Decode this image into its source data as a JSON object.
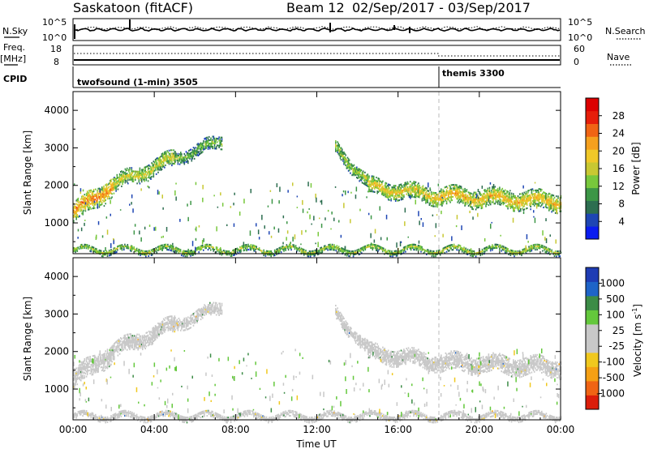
{
  "header": {
    "radar": "Saskatoon (fitACF)",
    "beam": "Beam 12",
    "dates": "02/Sep/2017 - 03/Sep/2017"
  },
  "strips": {
    "nsky_label": "N.Sky",
    "nsearch_label": "N.Search",
    "sky_ticks": [
      "10^5",
      "10^0"
    ],
    "search_ticks": [
      "10^5",
      "10^0"
    ],
    "freq_label": "Freq.",
    "freq_unit": "[MHz]",
    "freq_ticks": [
      "18",
      "8"
    ],
    "nave_label": "Nave",
    "nave_ticks": [
      "60",
      "0"
    ],
    "cpid_label": "CPID",
    "cpid_segments": [
      {
        "name": "twofsound (1-min) 3505",
        "start_hour": 0
      },
      {
        "name": "themis 3300",
        "start_hour": 18
      }
    ]
  },
  "axes": {
    "ylabel": "Slant Range [km]",
    "xlabel": "Time UT",
    "y_ticks": [
      1000,
      2000,
      3000,
      4000
    ],
    "x_ticks": [
      "00:00",
      "04:00",
      "08:00",
      "12:00",
      "16:00",
      "20:00",
      "00:00"
    ]
  },
  "colorbars": {
    "power": {
      "label": "Power [dB]",
      "ticks": [
        "4",
        "8",
        "12",
        "16",
        "20",
        "24",
        "28"
      ],
      "colors": [
        "#0a1cf0",
        "#1e46b4",
        "#2d6e50",
        "#3c9646",
        "#78c83c",
        "#c8c832",
        "#f0c828",
        "#f5a01e",
        "#f06414",
        "#e61e0a",
        "#dc0000"
      ]
    },
    "velocity": {
      "label_main": "Velocity [m s",
      "label_sup": "-1",
      "label_end": "]",
      "ticks": [
        "1000",
        "500",
        "100",
        "25",
        "-25",
        "-100",
        "-500",
        "-1000"
      ],
      "colors": [
        "#1e3cb4",
        "#1e64c8",
        "#3c8c46",
        "#64c83c",
        "#c8c8c8",
        "#c8c8c8",
        "#f0c81e",
        "#f5a014",
        "#f06414",
        "#dc1e0a"
      ]
    }
  },
  "chart_data": [
    {
      "type": "heatmap",
      "name": "Power",
      "x_range_hours": [
        0,
        24
      ],
      "y_range_km": [
        180,
        4500
      ],
      "xlabel": "Time UT",
      "ylabel": "Slant Range [km]",
      "colorbar_label": "Power [dB]",
      "bands": [
        {
          "t0": 0.0,
          "t1": 2.0,
          "r0": 1250,
          "r1": 2000,
          "w": 520,
          "p": 20
        },
        {
          "t0": 2.0,
          "t1": 5.0,
          "r0": 2000,
          "r1": 2700,
          "w": 420,
          "p": 14
        },
        {
          "t0": 5.0,
          "t1": 7.3,
          "r0": 2700,
          "r1": 3150,
          "w": 320,
          "p": 10
        },
        {
          "t0": 12.9,
          "t1": 14.5,
          "r0": 3000,
          "r1": 2050,
          "w": 360,
          "p": 12
        },
        {
          "t0": 14.5,
          "t1": 18.0,
          "r0": 1950,
          "r1": 1700,
          "w": 420,
          "p": 16
        },
        {
          "t0": 18.0,
          "t1": 24.0,
          "r0": 1700,
          "r1": 1550,
          "w": 460,
          "p": 17
        },
        {
          "t0": 0.0,
          "t1": 24.0,
          "r0": 260,
          "r1": 260,
          "w": 170,
          "p": 12
        }
      ]
    },
    {
      "type": "heatmap",
      "name": "Velocity",
      "x_range_hours": [
        0,
        24
      ],
      "y_range_km": [
        180,
        4500
      ],
      "xlabel": "Time UT",
      "ylabel": "Slant Range [km]",
      "colorbar_label": "Velocity [m s-1]",
      "bands": [
        {
          "t0": 0.0,
          "t1": 2.0,
          "r0": 1250,
          "r1": 2000,
          "w": 520,
          "v": 0
        },
        {
          "t0": 2.0,
          "t1": 5.0,
          "r0": 2000,
          "r1": 2700,
          "w": 420,
          "v": 0
        },
        {
          "t0": 5.0,
          "t1": 7.3,
          "r0": 2700,
          "r1": 3150,
          "w": 320,
          "v": 0
        },
        {
          "t0": 12.9,
          "t1": 14.5,
          "r0": 3000,
          "r1": 2050,
          "w": 360,
          "v": 0
        },
        {
          "t0": 14.5,
          "t1": 18.0,
          "r0": 1950,
          "r1": 1700,
          "w": 420,
          "v": 0
        },
        {
          "t0": 18.0,
          "t1": 24.0,
          "r0": 1700,
          "r1": 1550,
          "w": 460,
          "v": 0
        },
        {
          "t0": 0.0,
          "t1": 24.0,
          "r0": 260,
          "r1": 260,
          "w": 170,
          "v": -60
        }
      ]
    }
  ]
}
